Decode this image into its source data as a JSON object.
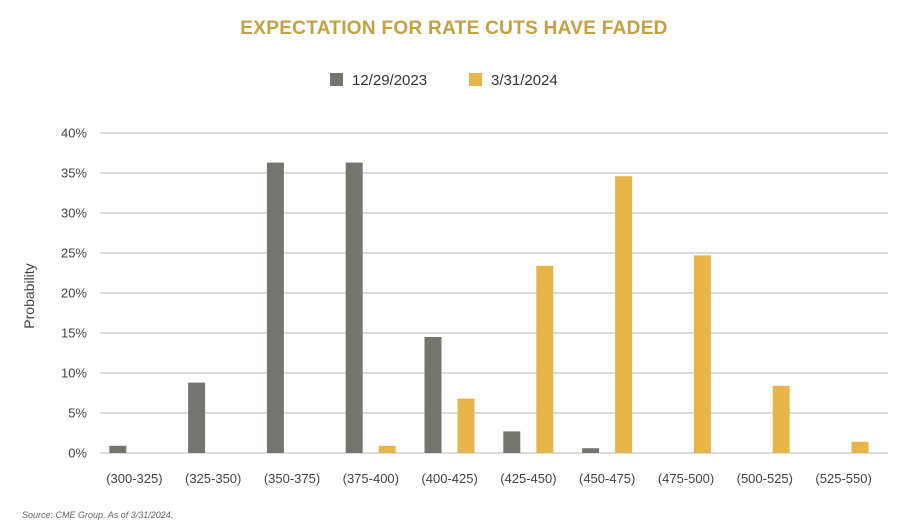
{
  "chart_data": {
    "type": "bar",
    "title": "EXPECTATION FOR RATE CUTS HAVE FADED",
    "ylabel": "Probability",
    "xlabel": "",
    "categories": [
      "(300-325)",
      "(325-350)",
      "(350-375)",
      "(375-400)",
      "(400-425)",
      "(425-450)",
      "(450-475)",
      "(475-500)",
      "(500-525)",
      "(525-550)"
    ],
    "series": [
      {
        "name": "12/29/2023",
        "color": "#75746f",
        "values": [
          0.9,
          8.8,
          36.3,
          36.3,
          14.5,
          2.7,
          0.6,
          0,
          0,
          0
        ]
      },
      {
        "name": "3/31/2024",
        "color": "#e8b54b",
        "values": [
          0,
          0,
          0,
          0.9,
          6.8,
          23.4,
          34.6,
          24.7,
          8.4,
          1.4
        ]
      }
    ],
    "ylim": [
      0,
      40
    ],
    "yticks": [
      "0%",
      "5%",
      "10%",
      "15%",
      "20%",
      "25%",
      "30%",
      "35%",
      "40%"
    ],
    "grid": true,
    "legend": "top-center",
    "title_color": "#c9a040"
  },
  "source": "Source: CME Group. As of 3/31/2024."
}
